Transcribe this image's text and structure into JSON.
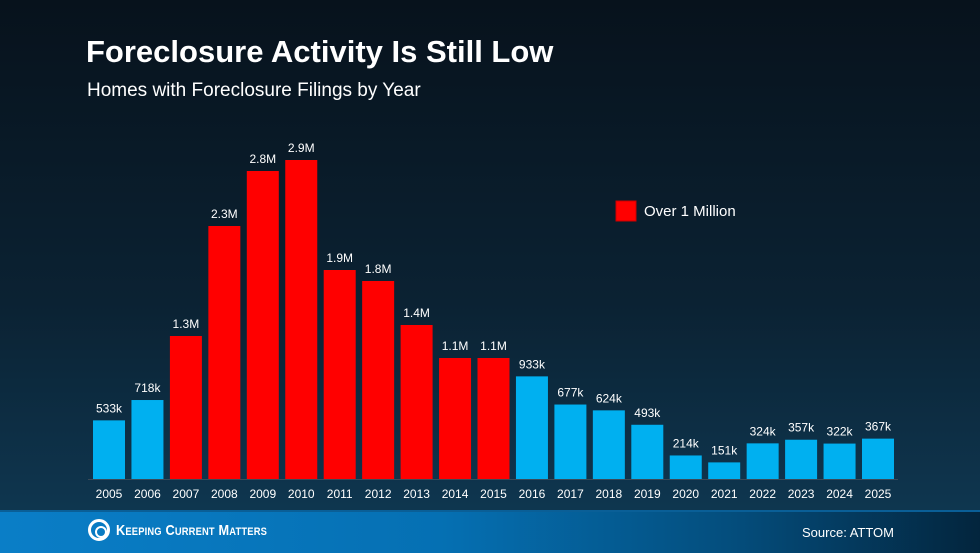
{
  "header": {
    "title": "Foreclosure Activity Is Still Low",
    "subtitle": "Homes with Foreclosure Filings by Year"
  },
  "footer": {
    "brand": "Keeping Current Matters",
    "source": "Source: ATTOM"
  },
  "chart_data": {
    "type": "bar",
    "title": "Foreclosure Activity Is Still Low",
    "subtitle": "Homes with Foreclosure Filings by Year",
    "categories": [
      "2005",
      "2006",
      "2007",
      "2008",
      "2009",
      "2010",
      "2011",
      "2012",
      "2013",
      "2014",
      "2015",
      "2016",
      "2017",
      "2018",
      "2019",
      "2020",
      "2021",
      "2022",
      "2023",
      "2024",
      "2025"
    ],
    "values": [
      533000,
      718000,
      1300000,
      2300000,
      2800000,
      2900000,
      1900000,
      1800000,
      1400000,
      1100000,
      1100000,
      933000,
      677000,
      624000,
      493000,
      214000,
      151000,
      324000,
      357000,
      322000,
      367000
    ],
    "data_labels": [
      "533k",
      "718k",
      "1.3M",
      "2.3M",
      "2.8M",
      "2.9M",
      "1.9M",
      "1.8M",
      "1.4M",
      "1.1M",
      "1.1M",
      "933k",
      "677k",
      "624k",
      "493k",
      "214k",
      "151k",
      "324k",
      "357k",
      "322k",
      "367k"
    ],
    "ylim": [
      0,
      2900000
    ],
    "grid": false,
    "colors": {
      "normal": "#00b0f0",
      "over_1m": "#ff0000"
    },
    "legend": {
      "label": "Over 1 Million",
      "color": "#ff0000",
      "placement": "top-right"
    }
  }
}
